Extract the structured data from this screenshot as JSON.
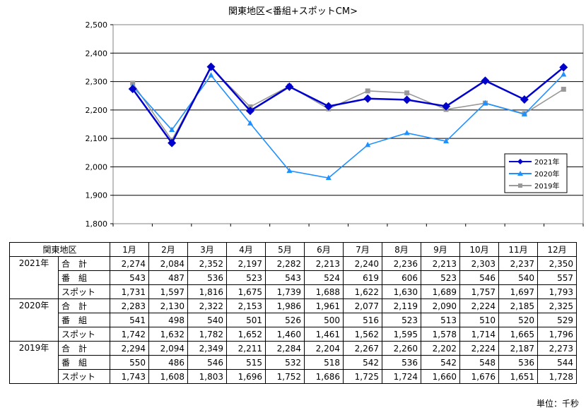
{
  "chart_data": {
    "type": "line",
    "title": "関東地区<番組+スポットCM>",
    "categories": [
      "1月",
      "2月",
      "3月",
      "4月",
      "5月",
      "6月",
      "7月",
      "8月",
      "9月",
      "10月",
      "11月",
      "12月"
    ],
    "ylim": [
      1800,
      2500
    ],
    "yticks": [
      "1,800",
      "1,900",
      "2,000",
      "2,100",
      "2,200",
      "2,300",
      "2,400",
      "2,500"
    ],
    "grid": true,
    "legend": "right",
    "series": [
      {
        "name": "2021年",
        "color": "#0000CC",
        "marker": "diamond",
        "values": [
          2274,
          2084,
          2352,
          2197,
          2282,
          2213,
          2240,
          2236,
          2213,
          2303,
          2237,
          2350
        ]
      },
      {
        "name": "2020年",
        "color": "#1E90FF",
        "marker": "triangle",
        "values": [
          2283,
          2130,
          2322,
          2153,
          1986,
          1961,
          2077,
          2119,
          2090,
          2224,
          2185,
          2325
        ]
      },
      {
        "name": "2019年",
        "color": "#999999",
        "marker": "square",
        "values": [
          2294,
          2094,
          2349,
          2211,
          2284,
          2204,
          2267,
          2260,
          2202,
          2224,
          2187,
          2273
        ]
      }
    ]
  },
  "table": {
    "corner": "関東地区",
    "months": [
      "1月",
      "2月",
      "3月",
      "4月",
      "5月",
      "6月",
      "7月",
      "8月",
      "9月",
      "10月",
      "11月",
      "12月"
    ],
    "groups": [
      {
        "year": "2021年",
        "rows": [
          {
            "label": "合　計",
            "values": [
              "2,274",
              "2,084",
              "2,352",
              "2,197",
              "2,282",
              "2,213",
              "2,240",
              "2,236",
              "2,213",
              "2,303",
              "2,237",
              "2,350"
            ]
          },
          {
            "label": "番　組",
            "values": [
              "543",
              "487",
              "536",
              "523",
              "543",
              "524",
              "619",
              "606",
              "523",
              "546",
              "540",
              "557"
            ]
          },
          {
            "label": "スポット",
            "values": [
              "1,731",
              "1,597",
              "1,816",
              "1,675",
              "1,739",
              "1,688",
              "1,622",
              "1,630",
              "1,689",
              "1,757",
              "1,697",
              "1,793"
            ]
          }
        ]
      },
      {
        "year": "2020年",
        "rows": [
          {
            "label": "合　計",
            "values": [
              "2,283",
              "2,130",
              "2,322",
              "2,153",
              "1,986",
              "1,961",
              "2,077",
              "2,119",
              "2,090",
              "2,224",
              "2,185",
              "2,325"
            ]
          },
          {
            "label": "番　組",
            "values": [
              "541",
              "498",
              "540",
              "501",
              "526",
              "500",
              "516",
              "523",
              "513",
              "510",
              "520",
              "529"
            ]
          },
          {
            "label": "スポット",
            "values": [
              "1,742",
              "1,632",
              "1,782",
              "1,652",
              "1,460",
              "1,461",
              "1,562",
              "1,595",
              "1,578",
              "1,714",
              "1,665",
              "1,796"
            ]
          }
        ]
      },
      {
        "year": "2019年",
        "rows": [
          {
            "label": "合　計",
            "values": [
              "2,294",
              "2,094",
              "2,349",
              "2,211",
              "2,284",
              "2,204",
              "2,267",
              "2,260",
              "2,202",
              "2,224",
              "2,187",
              "2,273"
            ]
          },
          {
            "label": "番　組",
            "values": [
              "550",
              "486",
              "546",
              "515",
              "532",
              "518",
              "542",
              "536",
              "542",
              "548",
              "536",
              "544"
            ]
          },
          {
            "label": "スポット",
            "values": [
              "1,743",
              "1,608",
              "1,803",
              "1,696",
              "1,752",
              "1,686",
              "1,725",
              "1,724",
              "1,660",
              "1,676",
              "1,651",
              "1,728"
            ]
          }
        ]
      }
    ],
    "unit": "単位：千秒"
  }
}
